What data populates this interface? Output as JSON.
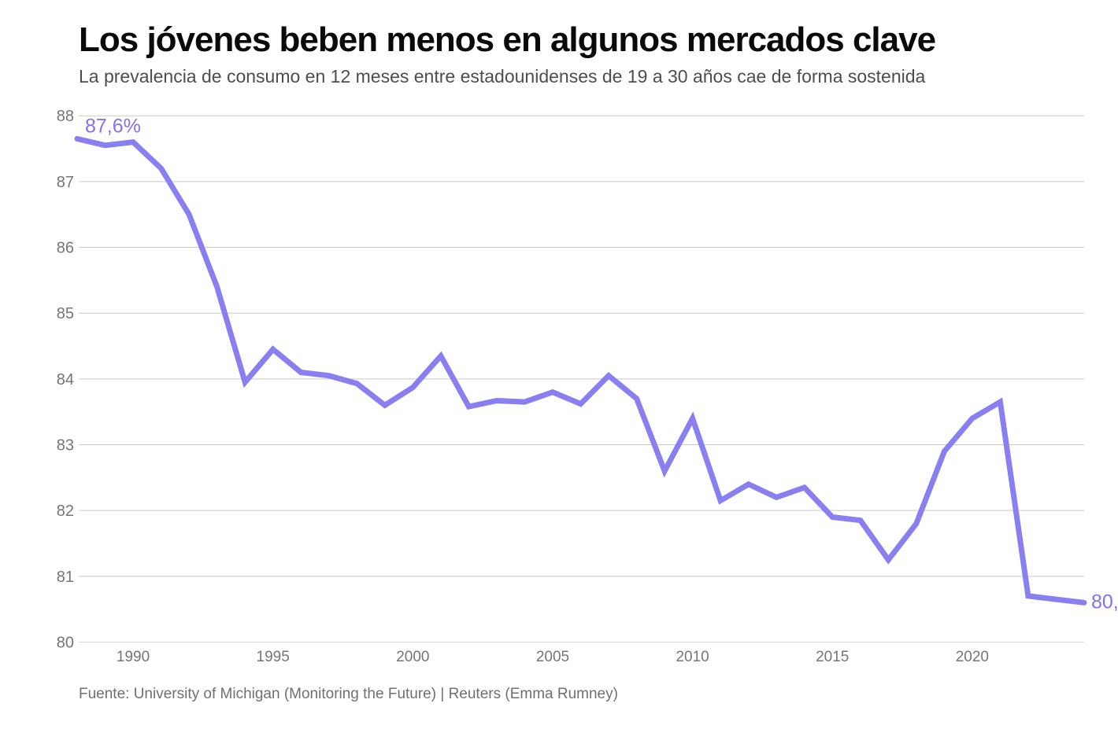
{
  "header": {
    "title": "Los jóvenes beben menos en algunos mercados clave",
    "subtitle": "La prevalencia de consumo en 12 meses entre estadounidenses de 19 a 30 años cae de forma sostenida"
  },
  "footer": {
    "source": "Fuente: University of Michigan (Monitoring the Future) | Reuters (Emma Rumney)"
  },
  "colors": {
    "line": "#897ff0",
    "annotation": "#8272ee",
    "grid": "#c9c9c9",
    "baseline": "#d9d9d9",
    "tick_label": "#757575",
    "title": "#0a0a0a",
    "subtitle": "#4d4d4d",
    "footer_text": "#707070"
  },
  "chart_data": {
    "type": "line",
    "title": "Los jóvenes beben menos en algunos mercados clave",
    "subtitle": "La prevalencia de consumo en 12 meses entre estadounidenses de 19 a 30 años cae de forma sostenida",
    "xlabel": "",
    "ylabel": "",
    "xlim": [
      1988,
      2024
    ],
    "ylim": [
      80,
      88
    ],
    "xticks": [
      1990,
      1995,
      2000,
      2005,
      2010,
      2015,
      2020
    ],
    "yticks": [
      80,
      81,
      82,
      83,
      84,
      85,
      86,
      87,
      88
    ],
    "grid": "horizontal",
    "legend": "none",
    "x": [
      1988,
      1989,
      1990,
      1991,
      1992,
      1993,
      1994,
      1995,
      1996,
      1997,
      1998,
      1999,
      2000,
      2001,
      2002,
      2003,
      2004,
      2005,
      2006,
      2007,
      2008,
      2009,
      2010,
      2011,
      2012,
      2013,
      2014,
      2015,
      2016,
      2017,
      2018,
      2019,
      2020,
      2021,
      2022,
      2023,
      2024
    ],
    "values": [
      87.65,
      87.55,
      87.6,
      87.2,
      86.5,
      85.4,
      83.95,
      84.45,
      84.1,
      84.05,
      83.93,
      83.6,
      83.87,
      84.35,
      83.58,
      83.67,
      83.65,
      83.8,
      83.62,
      84.05,
      83.7,
      82.6,
      83.4,
      82.15,
      82.4,
      82.2,
      82.35,
      81.9,
      81.85,
      81.25,
      81.8,
      82.9,
      83.4,
      83.65,
      80.7,
      80.65,
      80.6
    ],
    "annotations": [
      {
        "text": "87,6%",
        "year": 1988,
        "value": 87.65,
        "placement": "above-right"
      },
      {
        "text": "80,",
        "year": 2024,
        "value": 80.6,
        "placement": "right"
      }
    ]
  }
}
